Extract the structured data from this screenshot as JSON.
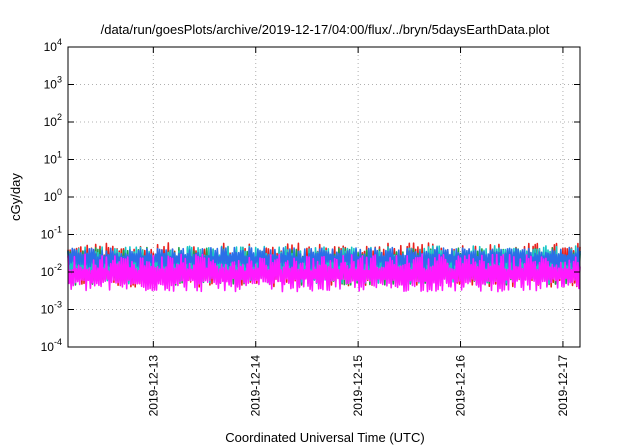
{
  "chart_data": {
    "type": "line",
    "title": "/data/run/goesPlots/archive/2019-12-17/04:00/flux/../bryn/5daysEarthData.plot",
    "xlabel": "Coordinated Universal Time (UTC)",
    "ylabel": "cGy/day",
    "yscale": "log",
    "grid": true,
    "ylim": [
      0.0001,
      10000
    ],
    "y_ticks": [
      {
        "base": "10",
        "exp": "-4",
        "value": 0.0001
      },
      {
        "base": "10",
        "exp": "-3",
        "value": 0.001
      },
      {
        "base": "10",
        "exp": "-2",
        "value": 0.01
      },
      {
        "base": "10",
        "exp": "-1",
        "value": 0.1
      },
      {
        "base": "10",
        "exp": "0",
        "value": 1
      },
      {
        "base": "10",
        "exp": "1",
        "value": 10
      },
      {
        "base": "10",
        "exp": "2",
        "value": 100
      },
      {
        "base": "10",
        "exp": "3",
        "value": 1000
      },
      {
        "base": "10",
        "exp": "4",
        "value": 10000
      }
    ],
    "xlim": [
      "2019-12-12T04:00",
      "2019-12-17T04:00"
    ],
    "x_ticks": [
      {
        "label": "2019-12-13",
        "value": "2019-12-13T00:00"
      },
      {
        "label": "2019-12-14",
        "value": "2019-12-14T00:00"
      },
      {
        "label": "2019-12-15",
        "value": "2019-12-15T00:00"
      },
      {
        "label": "2019-12-16",
        "value": "2019-12-16T00:00"
      },
      {
        "label": "2019-12-17",
        "value": "2019-12-17T00:00"
      }
    ],
    "series": [
      {
        "color": "#e8201c",
        "low": 0.004,
        "high": 0.06
      },
      {
        "color": "#1aa34a",
        "low": 0.0045,
        "high": 0.045
      },
      {
        "color": "#17c7c7",
        "low": 0.005,
        "high": 0.05
      },
      {
        "color": "#2a6fe8",
        "low": 0.012,
        "high": 0.045
      },
      {
        "color": "#ff19ff",
        "low": 0.003,
        "high": 0.03
      }
    ]
  }
}
